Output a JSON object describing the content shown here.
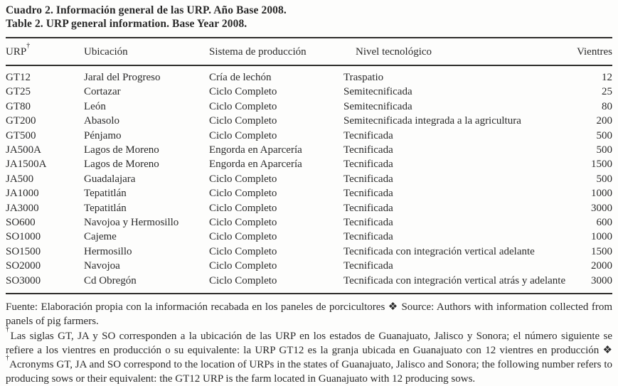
{
  "title": {
    "line_es": "Cuadro 2. Información general de las URP. Año Base 2008.",
    "line_en": "Table 2. URP general information. Base Year 2008."
  },
  "table": {
    "dagger": "†",
    "columns": [
      "URP",
      "Ubicación",
      "Sistema de producción",
      "Nivel tecnológico",
      "Vientres"
    ],
    "rows": [
      [
        "GT12",
        "Jaral del Progreso",
        "Cría de lechón",
        "Traspatio",
        "12"
      ],
      [
        "GT25",
        "Cortazar",
        "Ciclo Completo",
        "Semitecnificada",
        "25"
      ],
      [
        "GT80",
        "León",
        "Ciclo Completo",
        "Semitecnificada",
        "80"
      ],
      [
        "GT200",
        "Abasolo",
        "Ciclo Completo",
        "Semitecnificada integrada a la agricultura",
        "200"
      ],
      [
        "GT500",
        "Pénjamo",
        "Ciclo Completo",
        "Tecnificada",
        "500"
      ],
      [
        "JA500A",
        "Lagos de Moreno",
        "Engorda en Aparcería",
        "Tecnificada",
        "500"
      ],
      [
        "JA1500A",
        "Lagos de Moreno",
        "Engorda en Aparcería",
        "Tecnificada",
        "1500"
      ],
      [
        "JA500",
        "Guadalajara",
        "Ciclo Completo",
        "Tecnificada",
        "500"
      ],
      [
        "JA1000",
        "Tepatitlán",
        "Ciclo Completo",
        "Tecnificada",
        "1000"
      ],
      [
        "JA3000",
        "Tepatitlán",
        "Ciclo Completo",
        "Tecnificada",
        "3000"
      ],
      [
        "SO600",
        "Navojoa y Hermosillo",
        "Ciclo Completo",
        "Tecnificada",
        "600"
      ],
      [
        "SO1000",
        "Cajeme",
        "Ciclo Completo",
        "Tecnificada",
        "1000"
      ],
      [
        "SO1500",
        "Hermosillo",
        "Ciclo Completo",
        "Tecnificada con integración vertical adelante",
        "1500"
      ],
      [
        "SO2000",
        "Navojoa",
        "Ciclo Completo",
        "Tecnificada",
        "2000"
      ],
      [
        "SO3000",
        "Cd Obregón",
        "Ciclo Completo",
        "Tecnificada con integración vertical atrás y adelante",
        "3000"
      ]
    ]
  },
  "footnotes": {
    "source": "Fuente: Elaboración propia con la información recabada en los paneles de porcicultores ❖ Source: Authors with information collected from panels of pig farmers.",
    "dagger": "†",
    "note_es": "Las siglas GT, JA y SO corresponden a la ubicación de las URP en los estados de Guanajuato, Jalisco y Sonora; el número siguiente se refiere a los vientres en producción o su equivalente: la URP GT12 es la granja ubicada en Guanajuato con 12 vientres en producción ❖ ",
    "note_en": "Acronyms GT, JA and SO correspond to the location of URPs in the states of Guanajuato, Jalisco and Sonora; the following number refers to producing sows or their equivalent: the GT12 URP is the farm located in Guanajuato with 12 producing sows."
  },
  "colors": {
    "text": "#2a2a2a",
    "rule": "#2e2d2b",
    "background": "#fdfdfc"
  }
}
